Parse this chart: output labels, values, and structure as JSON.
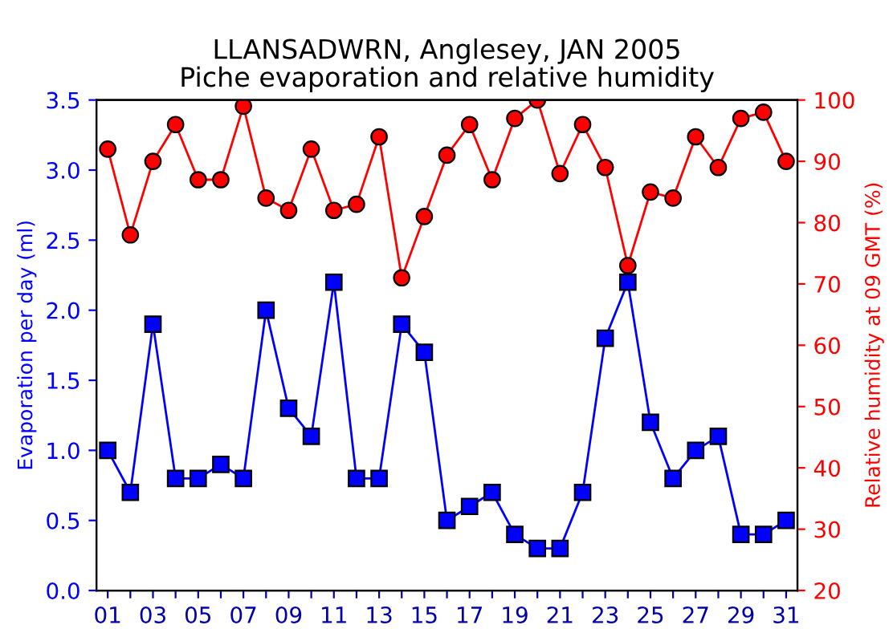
{
  "chart_data": {
    "type": "line",
    "title": "LLANSADWRN, Anglesey, JAN 2005\nPiche evaporation and relative humidity",
    "xlabel": null,
    "ylabel": "Evaporation per day (ml)",
    "y2label": "Relative humidity at 09 GMT (%)",
    "categories": [
      "01",
      null,
      "03",
      null,
      "05",
      null,
      "07",
      null,
      "09",
      null,
      "11",
      null,
      "13",
      null,
      "15",
      null,
      "17",
      null,
      "19",
      null,
      "21",
      null,
      "23",
      null,
      "25",
      null,
      "27",
      null,
      "29",
      null,
      "31"
    ],
    "series": [
      {
        "color": "#0000ff",
        "marker": "square",
        "values": [
          1.0,
          0.7,
          1.9,
          0.8,
          0.8,
          0.9,
          0.8,
          2.0,
          1.3,
          1.1,
          2.2,
          0.8,
          0.8,
          1.9,
          1.7,
          0.5,
          0.6,
          0.7,
          0.4,
          0.3,
          0.3,
          0.7,
          1.8,
          2.2,
          1.2,
          0.8,
          1.0,
          1.1,
          0.4,
          0.4,
          0.5
        ]
      },
      {
        "color": "#ff0000",
        "marker": "circle",
        "axis": "y2",
        "values": [
          92,
          78,
          90,
          96,
          87,
          87,
          99,
          84,
          82,
          92,
          82,
          83,
          94,
          71,
          81,
          91,
          96,
          87,
          97,
          100,
          88,
          96,
          89,
          73,
          85,
          84,
          94,
          89,
          97,
          98,
          90
        ]
      }
    ],
    "ylim": [
      0,
      3.5
    ],
    "yticks": [
      {
        "value": 0,
        "label": "0.0"
      },
      {
        "value": 0.5,
        "label": "0.5"
      },
      {
        "value": 1,
        "label": "1.0"
      },
      {
        "value": 1.5,
        "label": "1.5"
      },
      {
        "value": 2,
        "label": "2.0"
      },
      {
        "value": 2.5,
        "label": "2.5"
      },
      {
        "value": 3,
        "label": "3.0"
      },
      {
        "value": 3.5,
        "label": "3.5"
      }
    ],
    "y2lim": [
      20,
      100
    ],
    "y2ticks": [
      20,
      30,
      40,
      50,
      60,
      70,
      80,
      90,
      100
    ],
    "grid": false,
    "legend": false
  }
}
